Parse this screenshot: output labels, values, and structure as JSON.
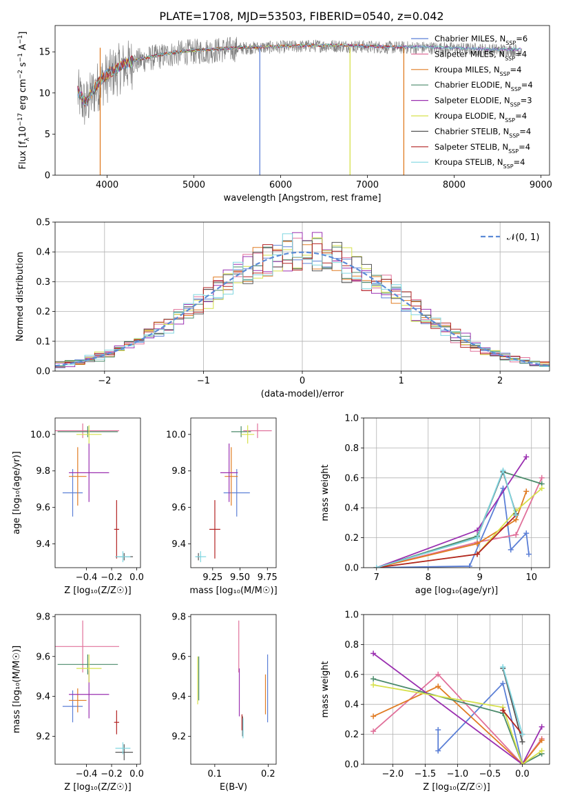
{
  "figure_title": "PLATE=1708, MJD=53503, FIBERID=0540, z=0.042",
  "models": [
    {
      "name": "Chabrier MILES",
      "nssp": "6",
      "color": "#5b7fd6"
    },
    {
      "name": "Salpeter MILES",
      "nssp": "4",
      "color": "#e0709a"
    },
    {
      "name": "Kroupa MILES",
      "nssp": "4",
      "color": "#e07b22"
    },
    {
      "name": "Chabrier ELODIE",
      "nssp": "4",
      "color": "#4a8a6a"
    },
    {
      "name": "Salpeter ELODIE",
      "nssp": "3",
      "color": "#9a2fb0"
    },
    {
      "name": "Kroupa ELODIE",
      "nssp": "4",
      "color": "#d6e04a"
    },
    {
      "name": "Chabrier STELIB",
      "nssp": "4",
      "color": "#555555"
    },
    {
      "name": "Salpeter STELIB",
      "nssp": "4",
      "color": "#b22222"
    },
    {
      "name": "Kroupa STELIB",
      "nssp": "4",
      "color": "#7fd6e0"
    }
  ],
  "chart_data": [
    {
      "id": "spectrum",
      "type": "line",
      "xlabel": "wavelength [Angstrom, rest frame]",
      "ylabel": "Flux [f$_\\lambda$10$^{-17}$ erg cm$^{-2}$ s$^{-1}$ A$^{-1}$]",
      "ylabel_parts": [
        "Flux [f",
        "λ",
        "10",
        "−17",
        " erg cm",
        "−2",
        " s",
        "−1",
        " A",
        "−1",
        "]"
      ],
      "xlim": [
        3400,
        9100
      ],
      "ylim": [
        0,
        18.2
      ],
      "xticks": [
        4000,
        5000,
        6000,
        7000,
        8000,
        9000
      ],
      "yticks": [
        0,
        5,
        10,
        15
      ],
      "legend_position": "upper right",
      "series_note": "observed spectrum (grey) and 9 model fits",
      "envelope": {
        "x": [
          3660,
          3750,
          3850,
          3950,
          4050,
          4150,
          4300,
          4500,
          4700,
          4900,
          5200,
          5500,
          5800,
          6100,
          6400,
          6700,
          7000,
          7300,
          7420,
          7600,
          7900,
          8200,
          8500,
          8700
        ],
        "y": [
          10.2,
          8.8,
          10.6,
          11.8,
          12.6,
          13.3,
          13.9,
          14.4,
          14.8,
          15.1,
          15.3,
          15.5,
          15.6,
          15.7,
          15.8,
          15.8,
          15.7,
          15.6,
          15.6,
          15.6,
          15.5,
          15.4,
          15.3,
          15.3
        ]
      },
      "model_end_wavelength": [
        7420,
        7420,
        7420,
        8780,
        8780,
        6800,
        5760,
        7420,
        8780
      ],
      "drops": [
        {
          "x": 3920,
          "color": "#e07b22"
        },
        {
          "x": 5760,
          "color": "#5b7fd6"
        },
        {
          "x": 6800,
          "color": "#d6e04a"
        },
        {
          "x": 7420,
          "color": "#e07b22"
        }
      ]
    },
    {
      "id": "residuals",
      "type": "histogram",
      "xlabel": "(data-model)/error",
      "ylabel": "Normed distribution",
      "xlim": [
        -2.5,
        2.5
      ],
      "ylim": [
        0,
        0.5
      ],
      "xticks": [
        -2,
        -1,
        0,
        1,
        2
      ],
      "yticks": [
        0,
        0.1,
        0.2,
        0.3,
        0.4,
        0.5
      ],
      "bin_width": 0.1,
      "reference_label": "𝒩(0, 1)",
      "legend_position": "upper right",
      "grid": true
    },
    {
      "id": "age_vs_Z",
      "type": "errorbar",
      "xlabel": "Z [log₁₀(Z/Z☉)]",
      "ylabel": "age  [log₁₀(age/yr)]",
      "xlim": [
        -0.65,
        0.03
      ],
      "ylim": [
        9.27,
        10.09
      ],
      "xticks": [
        -0.4,
        -0.2,
        0.0
      ],
      "xtick_labels": [
        "−0.4",
        "−0.2",
        "0.0"
      ],
      "yticks": [
        9.4,
        9.6,
        9.8,
        10.0
      ],
      "points": [
        {
          "m": 0,
          "x": -0.51,
          "xerr": 0.08,
          "y": 9.68,
          "yerr": 0.13
        },
        {
          "m": 1,
          "x": -0.43,
          "xerr": 0.29,
          "y": 10.02,
          "yerr": 0.04
        },
        {
          "m": 2,
          "x": -0.47,
          "xerr": 0.07,
          "y": 9.77,
          "yerr": 0.16
        },
        {
          "m": 3,
          "x": -0.39,
          "xerr": 0.24,
          "y": 10.015,
          "yerr": 0.03
        },
        {
          "m": 4,
          "x": -0.38,
          "xerr": 0.16,
          "y": 9.79,
          "yerr": 0.16
        },
        {
          "m": 5,
          "x": -0.38,
          "xerr": 0.1,
          "y": 10.0,
          "yerr": 0.05
        },
        {
          "m": 6,
          "x": -0.1,
          "xerr": 0.07,
          "y": 9.33,
          "yerr": 0.02
        },
        {
          "m": 7,
          "x": -0.16,
          "xerr": 0.02,
          "y": 9.48,
          "yerr": 0.16
        },
        {
          "m": 8,
          "x": -0.11,
          "xerr": 0.06,
          "y": 9.33,
          "yerr": 0.03
        }
      ]
    },
    {
      "id": "age_vs_mass",
      "type": "errorbar",
      "xlabel": "mass [log₁₀(M/M☉)]",
      "ylabel": "",
      "xlim": [
        9.05,
        9.83
      ],
      "ylim": [
        9.27,
        10.09
      ],
      "xticks": [
        9.25,
        9.5,
        9.75
      ],
      "xtick_labels": [
        "9.25",
        "9.50",
        "9.75"
      ],
      "yticks": [
        9.4,
        9.6,
        9.8,
        10.0
      ],
      "points": [
        {
          "m": 0,
          "x": 9.47,
          "xerr": 0.12,
          "y": 9.68,
          "yerr": 0.13
        },
        {
          "m": 1,
          "x": 9.66,
          "xerr": 0.13,
          "y": 10.02,
          "yerr": 0.04
        },
        {
          "m": 2,
          "x": 9.42,
          "xerr": 0.06,
          "y": 9.77,
          "yerr": 0.16
        },
        {
          "m": 3,
          "x": 9.51,
          "xerr": 0.09,
          "y": 10.015,
          "yerr": 0.03
        },
        {
          "m": 4,
          "x": 9.4,
          "xerr": 0.08,
          "y": 9.79,
          "yerr": 0.16
        },
        {
          "m": 5,
          "x": 9.57,
          "xerr": 0.06,
          "y": 10.0,
          "yerr": 0.05
        },
        {
          "m": 6,
          "x": 9.12,
          "xerr": 0.02,
          "y": 9.33,
          "yerr": 0.02
        },
        {
          "m": 7,
          "x": 9.27,
          "xerr": 0.05,
          "y": 9.48,
          "yerr": 0.16
        },
        {
          "m": 8,
          "x": 9.14,
          "xerr": 0.05,
          "y": 9.33,
          "yerr": 0.03
        }
      ]
    },
    {
      "id": "weight_vs_age",
      "type": "line",
      "xlabel": "age  [log₁₀(age/yr)]",
      "ylabel": "mass weight",
      "xlim": [
        6.75,
        10.35
      ],
      "ylim": [
        0,
        1
      ],
      "xticks": [
        7,
        8,
        9,
        10
      ],
      "yticks": [
        0,
        0.2,
        0.4,
        0.6,
        0.8,
        1.0
      ],
      "grid": true,
      "series": [
        {
          "m": 0,
          "x": [
            7.0,
            8.8,
            9.45,
            9.6,
            9.9,
            9.95
          ],
          "y": [
            0.0,
            0.01,
            0.53,
            0.12,
            0.23,
            0.09
          ]
        },
        {
          "m": 1,
          "x": [
            7.0,
            8.95,
            9.7,
            10.2
          ],
          "y": [
            0.0,
            0.17,
            0.22,
            0.6
          ]
        },
        {
          "m": 2,
          "x": [
            7.0,
            8.95,
            9.7,
            9.9
          ],
          "y": [
            0.0,
            0.16,
            0.32,
            0.51
          ]
        },
        {
          "m": 3,
          "x": [
            7.0,
            8.95,
            9.45,
            10.2
          ],
          "y": [
            0.0,
            0.21,
            0.64,
            0.56
          ]
        },
        {
          "m": 4,
          "x": [
            7.0,
            8.95,
            9.9
          ],
          "y": [
            0.0,
            0.25,
            0.74
          ]
        },
        {
          "m": 5,
          "x": [
            7.0,
            8.95,
            9.7,
            10.2
          ],
          "y": [
            0.0,
            0.09,
            0.38,
            0.53
          ]
        },
        {
          "m": 6,
          "x": [
            7.0,
            8.95,
            9.45,
            9.7
          ],
          "y": [
            0.0,
            0.2,
            0.64,
            0.36
          ]
        },
        {
          "m": 7,
          "x": [
            7.0,
            8.95,
            9.7
          ],
          "y": [
            0.0,
            0.09,
            0.35
          ]
        },
        {
          "m": 8,
          "x": [
            7.0,
            8.95,
            9.45,
            9.7
          ],
          "y": [
            0.0,
            0.2,
            0.65,
            0.35
          ]
        }
      ]
    },
    {
      "id": "mass_vs_Z",
      "type": "errorbar",
      "xlabel": "Z [log₁₀(Z/Z☉)]",
      "ylabel": "mass [log₁₀(M/M☉)]",
      "xlim": [
        -0.65,
        0.03
      ],
      "ylim": [
        9.06,
        9.81
      ],
      "xticks": [
        -0.4,
        -0.2,
        0.0
      ],
      "xtick_labels": [
        "−0.4",
        "−0.2",
        "0.0"
      ],
      "yticks": [
        9.2,
        9.4,
        9.6,
        9.8
      ],
      "points": [
        {
          "m": 0,
          "x": -0.51,
          "xerr": 0.08,
          "y": 9.35,
          "yerr": 0.08
        },
        {
          "m": 1,
          "x": -0.43,
          "xerr": 0.29,
          "y": 9.65,
          "yerr": 0.13
        },
        {
          "m": 2,
          "x": -0.47,
          "xerr": 0.07,
          "y": 9.38,
          "yerr": 0.06
        },
        {
          "m": 3,
          "x": -0.39,
          "xerr": 0.24,
          "y": 9.56,
          "yerr": 0.05
        },
        {
          "m": 4,
          "x": -0.38,
          "xerr": 0.16,
          "y": 9.41,
          "yerr": 0.12
        },
        {
          "m": 5,
          "x": -0.38,
          "xerr": 0.1,
          "y": 9.54,
          "yerr": 0.07
        },
        {
          "m": 6,
          "x": -0.1,
          "xerr": 0.07,
          "y": 9.12,
          "yerr": 0.04
        },
        {
          "m": 7,
          "x": -0.16,
          "xerr": 0.02,
          "y": 9.27,
          "yerr": 0.06
        },
        {
          "m": 8,
          "x": -0.11,
          "xerr": 0.06,
          "y": 9.14,
          "yerr": 0.03
        }
      ]
    },
    {
      "id": "mass_vs_EBV",
      "type": "errorbar",
      "xlabel": "E(B-V)",
      "ylabel": "",
      "xlim": [
        0.055,
        0.215
      ],
      "ylim": [
        9.06,
        9.81
      ],
      "xticks": [
        0.1,
        0.2
      ],
      "xtick_labels": [
        "0.1",
        "0.2"
      ],
      "yticks": [
        9.2,
        9.4,
        9.6,
        9.8
      ],
      "points": [
        {
          "m": 0,
          "x": 0.199,
          "xerr": 0,
          "y": 9.44,
          "yerr": 0.17
        },
        {
          "m": 1,
          "x": 0.145,
          "xerr": 0,
          "y": 9.65,
          "yerr": 0.13
        },
        {
          "m": 2,
          "x": 0.195,
          "xerr": 0,
          "y": 9.41,
          "yerr": 0.1
        },
        {
          "m": 3,
          "x": 0.07,
          "xerr": 0,
          "y": 9.49,
          "yerr": 0.11
        },
        {
          "m": 4,
          "x": 0.146,
          "xerr": 0,
          "y": 9.42,
          "yerr": 0.12
        },
        {
          "m": 5,
          "x": 0.068,
          "xerr": 0,
          "y": 9.48,
          "yerr": 0.12
        },
        {
          "m": 6,
          "x": 0.152,
          "xerr": 0,
          "y": 9.25,
          "yerr": 0.05
        },
        {
          "m": 7,
          "x": 0.151,
          "xerr": 0,
          "y": 9.27,
          "yerr": 0.04
        },
        {
          "m": 8,
          "x": 0.153,
          "xerr": 0,
          "y": 9.24,
          "yerr": 0.05
        }
      ]
    },
    {
      "id": "weight_vs_Z",
      "type": "line",
      "xlabel": "Z [log₁₀(Z/Z☉)]",
      "ylabel": "mass weight",
      "xlim": [
        -2.45,
        0.42
      ],
      "ylim": [
        0,
        1
      ],
      "xticks": [
        -2.0,
        -1.5,
        -1.0,
        -0.5,
        0.0
      ],
      "xtick_labels": [
        "−2.0",
        "−1.5",
        "−1.0",
        "−0.5",
        "0.0"
      ],
      "yticks": [
        0,
        0.2,
        0.4,
        0.6,
        0.8,
        1.0
      ],
      "grid": true,
      "series": [
        {
          "m": 0,
          "x": [
            -1.3,
            -1.3,
            -0.3,
            0.0
          ],
          "y": [
            0.23,
            0.09,
            0.54,
            0.0
          ]
        },
        {
          "m": 1,
          "x": [
            -2.3,
            -1.3,
            0.0,
            0.3
          ],
          "y": [
            0.22,
            0.6,
            0.0,
            0.17
          ]
        },
        {
          "m": 2,
          "x": [
            -2.3,
            -1.3,
            0.0,
            0.3
          ],
          "y": [
            0.32,
            0.52,
            0.0,
            0.16
          ]
        },
        {
          "m": 3,
          "x": [
            -2.3,
            -0.3,
            0.0,
            0.3
          ],
          "y": [
            0.57,
            0.34,
            0.0,
            0.07
          ]
        },
        {
          "m": 4,
          "x": [
            -2.3,
            0.0,
            0.3
          ],
          "y": [
            0.74,
            0.0,
            0.25
          ]
        },
        {
          "m": 5,
          "x": [
            -2.3,
            -0.3,
            0.0,
            0.3
          ],
          "y": [
            0.53,
            0.38,
            0.0,
            0.09
          ]
        },
        {
          "m": 6,
          "x": [
            -0.3,
            0.0
          ],
          "y": [
            0.64,
            0.15
          ]
        },
        {
          "m": 7,
          "x": [
            -0.3,
            0.0
          ],
          "y": [
            0.36,
            0.2
          ]
        },
        {
          "m": 8,
          "x": [
            -0.3,
            0.0
          ],
          "y": [
            0.65,
            0.2
          ]
        }
      ]
    }
  ]
}
